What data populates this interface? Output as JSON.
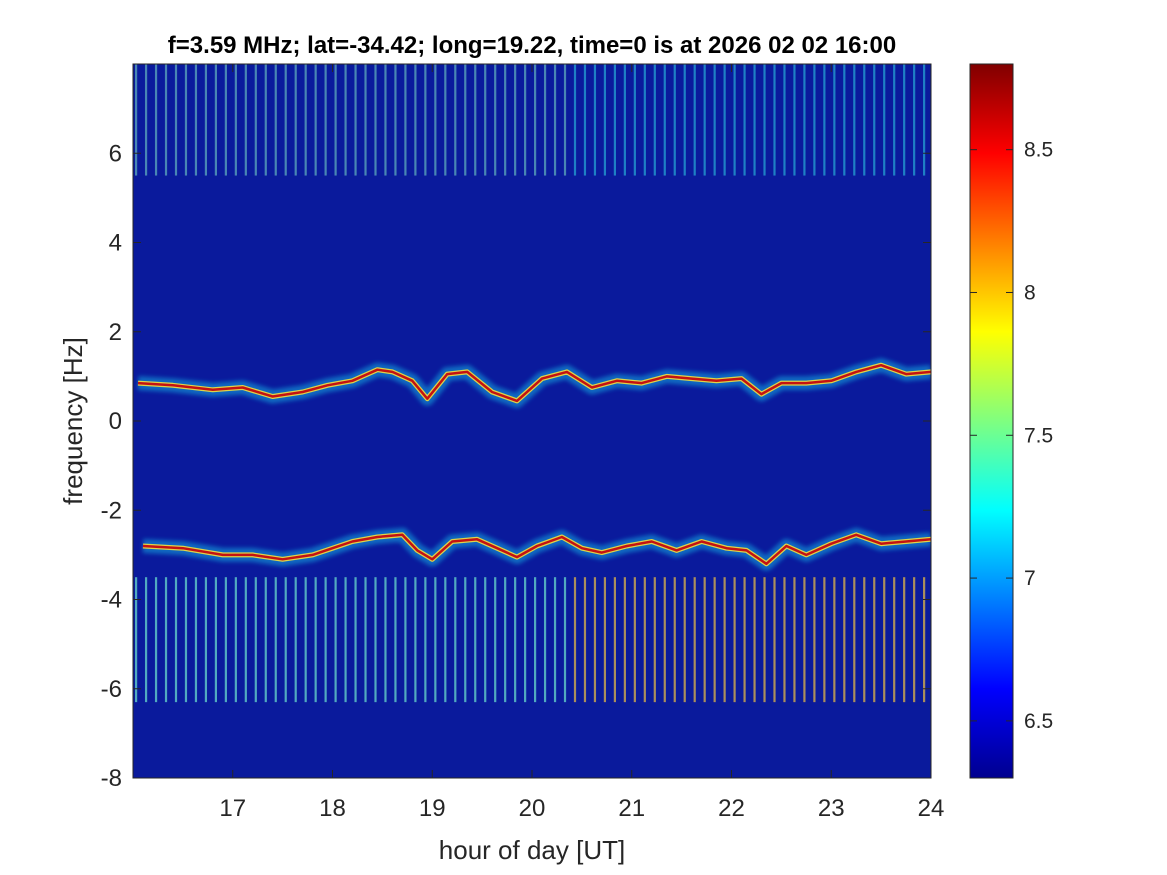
{
  "chart_data": {
    "type": "heatmap",
    "title": "f=3.59 MHz;  lat=-34.42; long=19.22, time=0 is at 2026 02 02 16:00",
    "xlabel": "hour of day [UT]",
    "ylabel": "frequency [Hz]",
    "xlim": [
      16,
      24
    ],
    "ylim": [
      -8,
      8
    ],
    "xticks": [
      17,
      18,
      19,
      20,
      21,
      22,
      23,
      24
    ],
    "yticks": [
      -8,
      -6,
      -4,
      -2,
      0,
      2,
      4,
      6
    ],
    "colorbar": {
      "colormap": "jet",
      "clim": [
        6.3,
        8.8
      ],
      "ticks": [
        "6.5",
        "7",
        "7.5",
        "8",
        "8.5"
      ],
      "tick_values": [
        6.5,
        7,
        7.5,
        8,
        8.5
      ]
    },
    "background_color": "#0a1a9c",
    "traces": [
      {
        "name": "",
        "x": [
          16.05,
          16.4,
          16.8,
          17.1,
          17.4,
          17.7,
          17.95,
          18.2,
          18.45,
          18.6,
          18.8,
          18.95,
          19.15,
          19.35,
          19.6,
          19.85,
          20.1,
          20.35,
          20.6,
          20.85,
          21.1,
          21.35,
          21.6,
          21.85,
          22.1,
          22.3,
          22.5,
          22.75,
          23.0,
          23.25,
          23.5,
          23.75,
          24.0
        ],
        "y": [
          0.85,
          0.8,
          0.7,
          0.75,
          0.55,
          0.65,
          0.8,
          0.9,
          1.15,
          1.1,
          0.9,
          0.5,
          1.05,
          1.1,
          0.65,
          0.45,
          0.95,
          1.1,
          0.75,
          0.9,
          0.85,
          1.0,
          0.95,
          0.9,
          0.95,
          0.6,
          0.85,
          0.85,
          0.9,
          1.1,
          1.25,
          1.05,
          1.1
        ]
      },
      {
        "name": "",
        "x": [
          16.1,
          16.5,
          16.9,
          17.2,
          17.5,
          17.8,
          18.0,
          18.2,
          18.45,
          18.7,
          18.85,
          19.0,
          19.2,
          19.45,
          19.65,
          19.85,
          20.05,
          20.3,
          20.5,
          20.7,
          20.95,
          21.2,
          21.45,
          21.7,
          21.95,
          22.15,
          22.35,
          22.55,
          22.75,
          23.0,
          23.25,
          23.5,
          23.75,
          24.0
        ],
        "y": [
          -2.8,
          -2.85,
          -3.0,
          -3.0,
          -3.1,
          -3.0,
          -2.85,
          -2.7,
          -2.6,
          -2.55,
          -2.9,
          -3.1,
          -2.7,
          -2.65,
          -2.85,
          -3.05,
          -2.8,
          -2.6,
          -2.85,
          -2.95,
          -2.8,
          -2.7,
          -2.9,
          -2.7,
          -2.85,
          -2.9,
          -3.2,
          -2.8,
          -3.0,
          -2.75,
          -2.55,
          -2.75,
          -2.7,
          -2.65
        ]
      }
    ],
    "periodic_stripes": {
      "y_bands": [
        [
          5.5,
          8
        ],
        [
          -6.3,
          -3.5
        ]
      ],
      "x_interval_hours": 0.1,
      "color_change_at_hour": 20.33
    }
  }
}
